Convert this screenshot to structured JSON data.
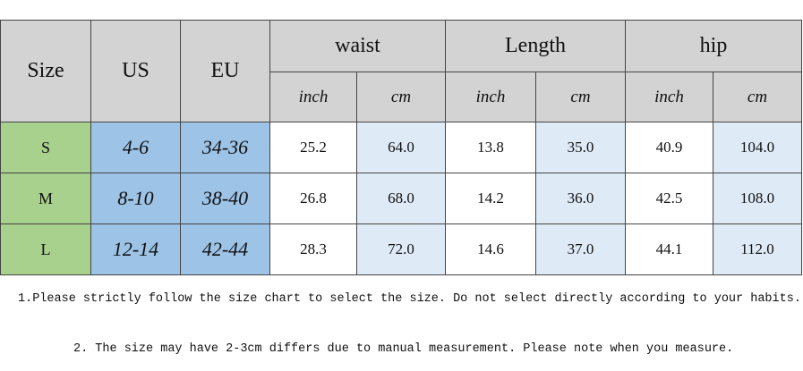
{
  "header": {
    "fixed": [
      "Size",
      "US",
      "EU"
    ],
    "groups": [
      "waist",
      "Length",
      "hip"
    ],
    "units": [
      "inch",
      "cm",
      "inch",
      "cm",
      "inch",
      "cm"
    ]
  },
  "table": {
    "rows": [
      [
        "S",
        "4-6",
        "34-36",
        "25.2",
        "64.0",
        "13.8",
        "35.0",
        "40.9",
        "104.0"
      ],
      [
        "M",
        "8-10",
        "38-40",
        "26.8",
        "68.0",
        "14.2",
        "36.0",
        "42.5",
        "108.0"
      ],
      [
        "L",
        "12-14",
        "42-44",
        "28.3",
        "72.0",
        "14.6",
        "37.0",
        "44.1",
        "112.0"
      ]
    ]
  },
  "notes": [
    "1.Please strictly follow the size chart to select the size. Do not select directly according to your habits.",
    "2. The size may have 2-3cm differs due to manual measurement. Please note when you measure."
  ]
}
